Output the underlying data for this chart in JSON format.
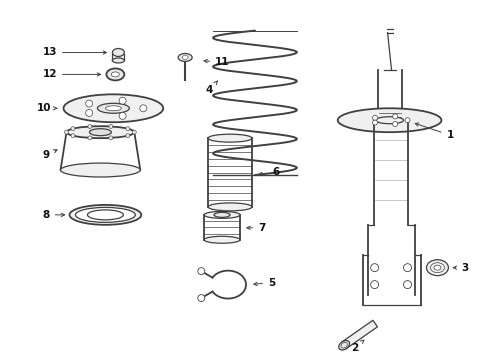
{
  "bg_color": "#ffffff",
  "line_color": "#404040",
  "text_color": "#111111",
  "fig_width": 4.89,
  "fig_height": 3.6,
  "dpi": 100,
  "gray_fill": "#e8e8e8",
  "light_gray": "#d0d0d0"
}
